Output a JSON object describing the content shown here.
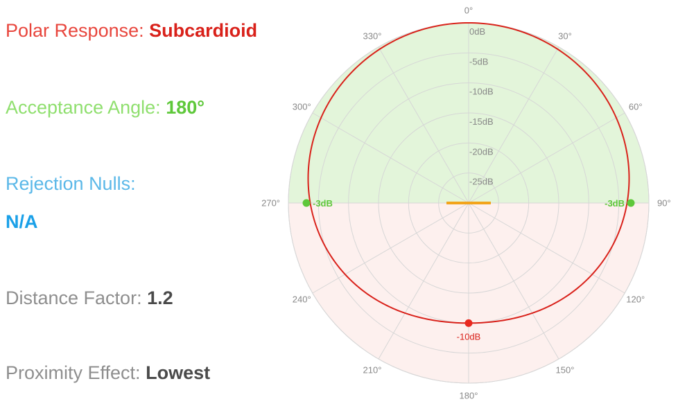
{
  "info": {
    "polar_response": {
      "label": "Polar Response:",
      "value": "Subcardioid"
    },
    "acceptance_angle": {
      "label": "Acceptance Angle:",
      "value": "180°"
    },
    "rejection_nulls": {
      "label": "Rejection Nulls:",
      "value": "N/A"
    },
    "distance_factor": {
      "label": "Distance Factor:",
      "value": "1.2"
    },
    "proximity_effect": {
      "label": "Proximity Effect:",
      "value": "Lowest"
    }
  },
  "colors": {
    "polar_response": "#e8453c",
    "polar_response_value": "#d9211a",
    "acceptance_angle": "#8fdf6e",
    "acceptance_angle_value": "#5ec83a",
    "rejection_nulls": "#5bb8e8",
    "rejection_nulls_value": "#1aa0e8",
    "muted": "#8e8e8e",
    "muted_value": "#4a4a4a",
    "front_zone_fill": "#e3f5da",
    "rear_zone_fill": "#fdf0ee",
    "grid": "#d6d6d6",
    "pattern_curve": "#d9211a",
    "marker_green": "#5ec83a",
    "marker_red": "#e8291f",
    "capsule": "#f2a41b"
  },
  "chart_data": {
    "type": "polar",
    "pattern": "subcardioid",
    "angle_unit": "degrees",
    "angle_ticks": [
      "0°",
      "30°",
      "60°",
      "90°",
      "120°",
      "150°",
      "180°",
      "210°",
      "240°",
      "270°",
      "300°",
      "330°"
    ],
    "radial_unit": "dB",
    "radial_range": [
      -30,
      0
    ],
    "ring_labels": [
      "0dB",
      "-5dB",
      "-10dB",
      "-15dB",
      "-20dB",
      "-25dB"
    ],
    "ring_values": [
      0,
      -5,
      -10,
      -15,
      -20,
      -25
    ],
    "front_zone": "front half (270° to 90° through 0°)",
    "rear_zone": "rear half (90° to 270° through 180°)",
    "markers": [
      {
        "angle": 90,
        "level": -3,
        "label": "-3dB",
        "color": "green"
      },
      {
        "angle": 270,
        "level": -3,
        "label": "-3dB",
        "color": "green"
      },
      {
        "angle": 180,
        "level": -10,
        "label": "-10dB",
        "color": "red"
      }
    ],
    "response_points": [
      {
        "angle": 0,
        "level": 0
      },
      {
        "angle": 30,
        "level": -0.4
      },
      {
        "angle": 60,
        "level": -1.5
      },
      {
        "angle": 90,
        "level": -3
      },
      {
        "angle": 120,
        "level": -5.1
      },
      {
        "angle": 150,
        "level": -7.6
      },
      {
        "angle": 180,
        "level": -10
      }
    ]
  }
}
